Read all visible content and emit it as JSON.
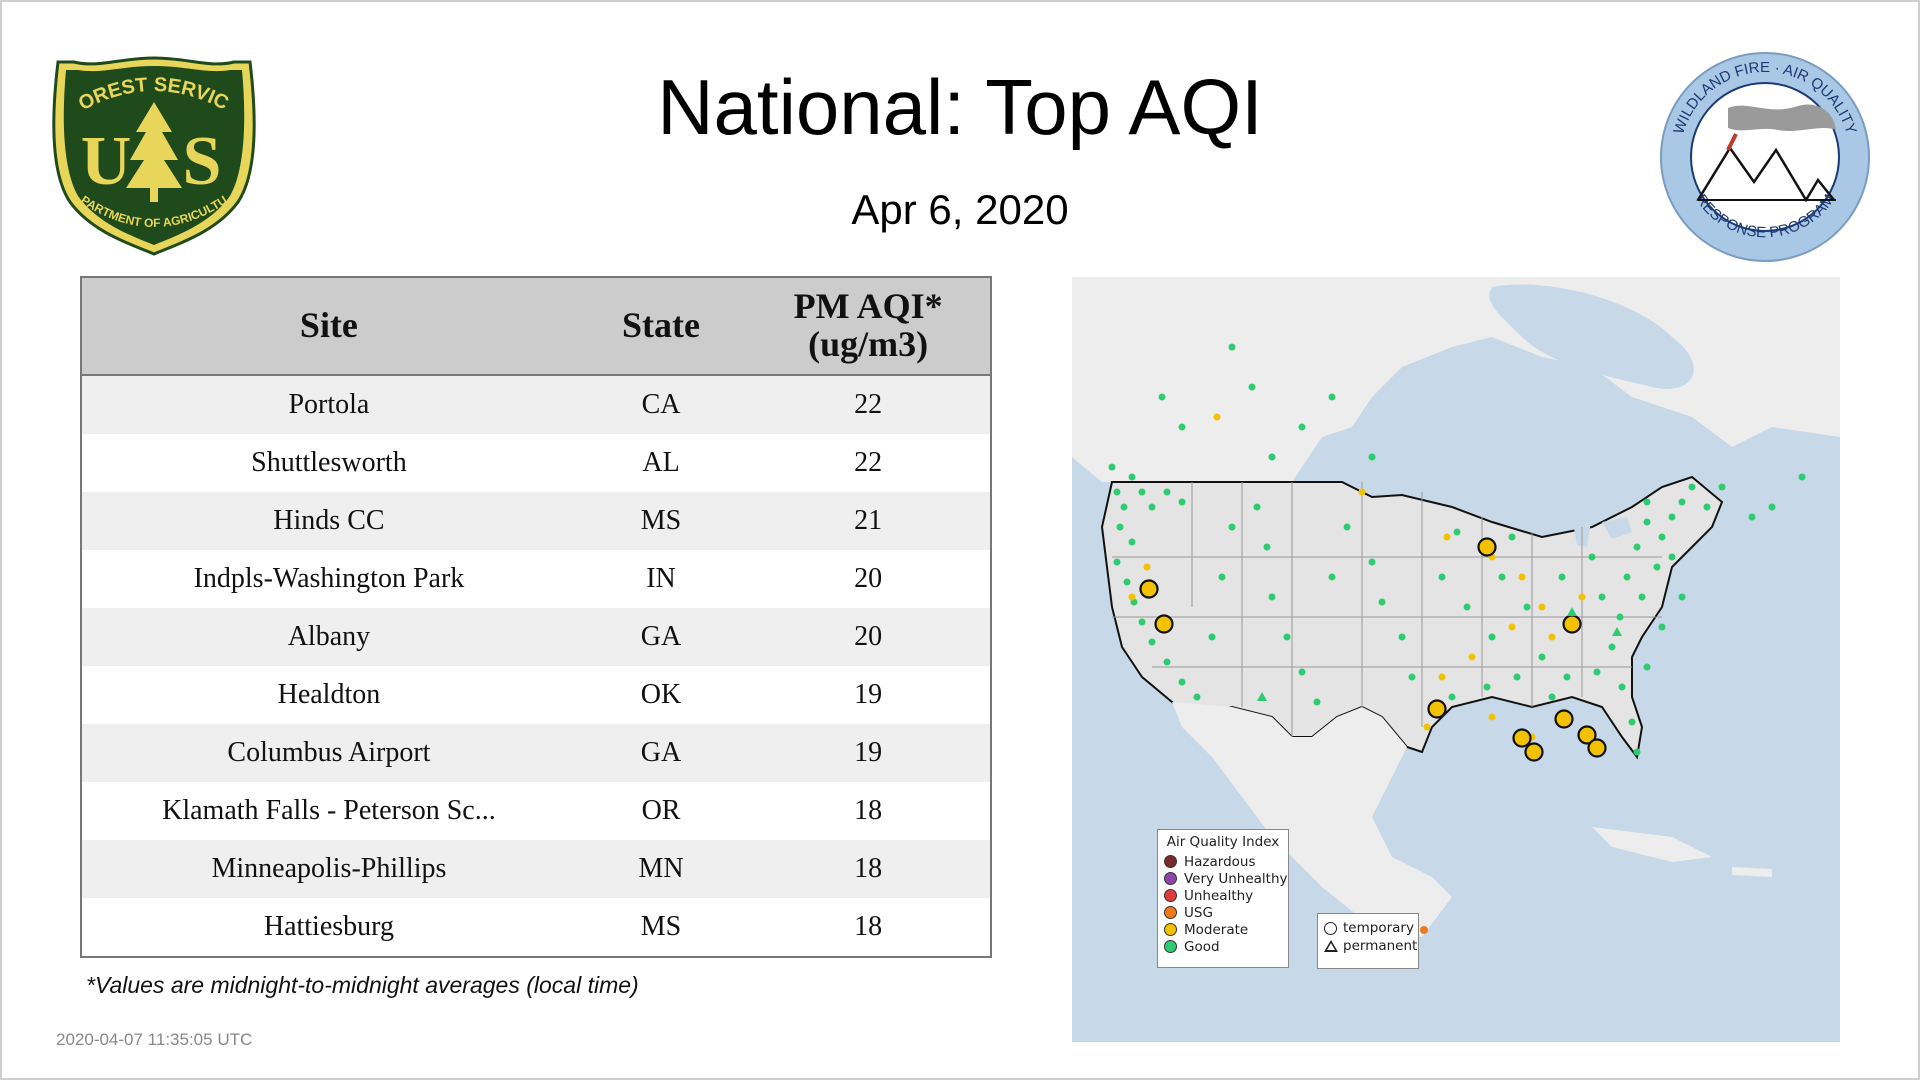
{
  "header": {
    "title": "National: Top AQI",
    "date": "Apr  6, 2020"
  },
  "logos": {
    "usfs": {
      "top_text": "FOREST SERVICE",
      "letters": "US",
      "bottom_text": "DEPARTMENT OF AGRICULTURE",
      "colors": {
        "green": "#1f4a1c",
        "gold": "#e8d65a"
      }
    },
    "wildland": {
      "top_text": "WILDLAND FIRE · AIR QUALITY",
      "bottom_text": "RESPONSE PROGRAM",
      "colors": {
        "ring": "#a9c8e6",
        "text": "#1b3a73"
      }
    }
  },
  "table": {
    "headers": {
      "site": "Site",
      "state": "State",
      "aqi_line1": "PM AQI*",
      "aqi_line2": "(ug/m3)"
    },
    "rows": [
      {
        "site": "Portola",
        "state": "CA",
        "aqi": "22"
      },
      {
        "site": "Shuttlesworth",
        "state": "AL",
        "aqi": "22"
      },
      {
        "site": "Hinds CC",
        "state": "MS",
        "aqi": "21"
      },
      {
        "site": "Indpls-Washington Park",
        "state": "IN",
        "aqi": "20"
      },
      {
        "site": "Albany",
        "state": "GA",
        "aqi": "20"
      },
      {
        "site": "Healdton",
        "state": "OK",
        "aqi": "19"
      },
      {
        "site": "Columbus Airport",
        "state": "GA",
        "aqi": "19"
      },
      {
        "site": "Klamath Falls - Peterson Sc...",
        "state": "OR",
        "aqi": "18"
      },
      {
        "site": "Minneapolis-Phillips",
        "state": "MN",
        "aqi": "18"
      },
      {
        "site": "Hattiesburg",
        "state": "MS",
        "aqi": "18"
      }
    ]
  },
  "footnote": "*Values are midnight-to-midnight averages (local time)",
  "timestamp": "2020-04-07 11:35:05 UTC",
  "map": {
    "colors": {
      "water": "#c7d9e8",
      "land": "#ededed",
      "us_land": "#e6e6e6",
      "good": "#2ecc71",
      "moderate": "#f2c200",
      "usg": "#f07a19"
    },
    "legend": {
      "title": "Air Quality Index",
      "items": [
        {
          "label": "Hazardous",
          "color": "#7a2a2a"
        },
        {
          "label": "Very Unhealthy",
          "color": "#8e44ad"
        },
        {
          "label": "Unhealthy",
          "color": "#e03c3c"
        },
        {
          "label": "USG",
          "color": "#f07a19"
        },
        {
          "label": "Moderate",
          "color": "#f2c200"
        },
        {
          "label": "Good",
          "color": "#2ecc71"
        }
      ]
    },
    "monitor_legend": {
      "temporary": "temporary",
      "permanent": "permanent"
    }
  }
}
